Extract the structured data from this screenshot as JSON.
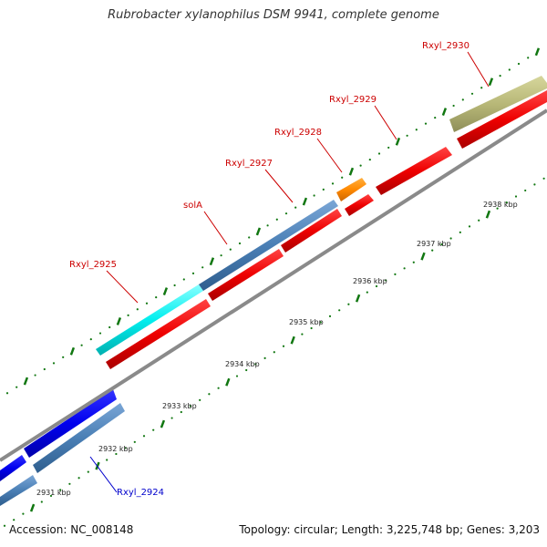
{
  "title": "Rubrobacter xylanophilus DSM 9941, complete genome",
  "footer": {
    "accession": "Accession: NC_008148",
    "summary": "Topology: circular; Length: 3,225,748 bp; Genes: 3,203"
  },
  "kbp_labels": [
    "2931 kbp",
    "2932 kbp",
    "2933 kbp",
    "2934 kbp",
    "2935 kbp",
    "2936 kbp",
    "2937 kbp",
    "2938 kbp"
  ],
  "genes": [
    {
      "name": "Rxyl_2924",
      "color": "#0000cc"
    },
    {
      "name": "Rxyl_2925",
      "color": "#cc0000"
    },
    {
      "name": "solA",
      "color": "#cc0000"
    },
    {
      "name": "Rxyl_2927",
      "color": "#cc0000"
    },
    {
      "name": "Rxyl_2928",
      "color": "#cc0000"
    },
    {
      "name": "Rxyl_2929",
      "color": "#cc0000"
    },
    {
      "name": "Rxyl_2930",
      "color": "#cc0000"
    }
  ],
  "colors": {
    "backbone": "#8a8a8a",
    "red": "#ee0000",
    "blue": "#0000ee",
    "steel": "#4a7fb5",
    "cyan": "#00eeee",
    "orange": "#ff8800",
    "olive": "#b8b878",
    "tick": "#117711"
  }
}
